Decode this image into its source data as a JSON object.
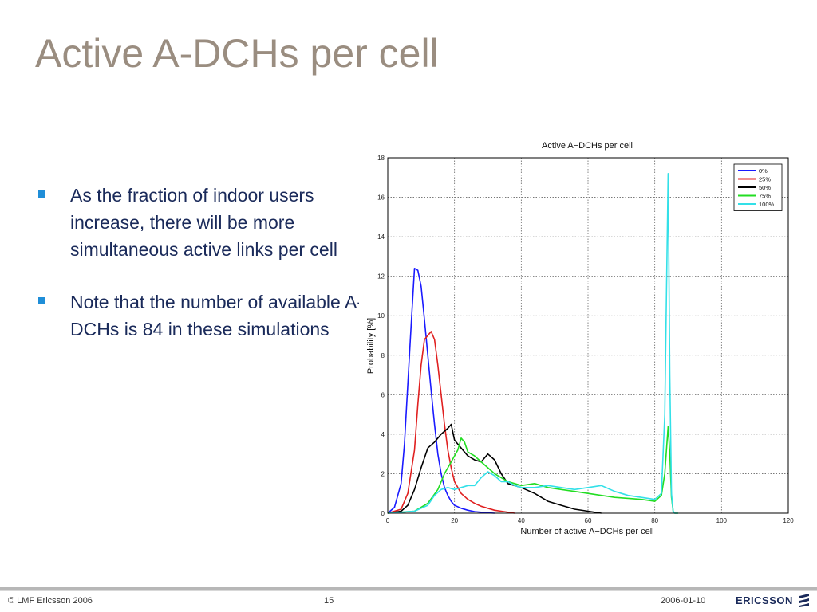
{
  "slide": {
    "title": "Active A-DCHs per cell",
    "bullets": [
      "As the fraction of indoor users increase, there will be more simultaneous active links per cell",
      "Note that the number of available A-DCHs is 84 in these simulations"
    ]
  },
  "footer": {
    "copyright": "© LMF Ericsson 2006",
    "page_number": "15",
    "date": "2006-01-10",
    "logo_text": "ERICSSON"
  },
  "chart_data": {
    "type": "line",
    "title": "Active A−DCHs per cell",
    "xlabel": "Number of active A−DCHs per cell",
    "ylabel": "Probability [%]",
    "xlim": [
      0,
      120
    ],
    "ylim": [
      0,
      18
    ],
    "xticks": [
      0,
      20,
      40,
      60,
      80,
      100,
      120
    ],
    "yticks": [
      0,
      2,
      4,
      6,
      8,
      10,
      12,
      14,
      16,
      18
    ],
    "grid": true,
    "legend_position": "top-right",
    "series": [
      {
        "name": "0%",
        "color": "#1a1aff",
        "x": [
          0,
          2,
          4,
          5,
          6,
          7,
          8,
          9,
          10,
          11,
          12,
          13,
          14,
          15,
          16,
          17,
          18,
          19,
          20,
          22,
          24,
          26,
          28,
          30,
          32
        ],
        "y": [
          0,
          0.3,
          1.5,
          3.5,
          6.5,
          9.5,
          12.4,
          12.3,
          11.5,
          9.8,
          8.0,
          6.2,
          4.5,
          3.0,
          2.0,
          1.3,
          0.9,
          0.6,
          0.4,
          0.25,
          0.15,
          0.08,
          0.05,
          0.02,
          0
        ]
      },
      {
        "name": "25%",
        "color": "#e02020",
        "x": [
          0,
          4,
          6,
          8,
          9,
          10,
          11,
          12,
          13,
          14,
          15,
          16,
          17,
          18,
          19,
          20,
          22,
          24,
          26,
          28,
          30,
          32,
          34,
          36,
          38
        ],
        "y": [
          0,
          0.2,
          1.0,
          3.2,
          5.5,
          7.5,
          8.8,
          9.0,
          9.2,
          8.8,
          7.5,
          6.0,
          4.5,
          3.2,
          2.3,
          1.6,
          1.0,
          0.7,
          0.5,
          0.35,
          0.25,
          0.15,
          0.1,
          0.05,
          0
        ]
      },
      {
        "name": "50%",
        "color": "#000000",
        "x": [
          0,
          4,
          6,
          8,
          10,
          12,
          14,
          16,
          18,
          19,
          20,
          21,
          22,
          24,
          26,
          28,
          30,
          32,
          34,
          36,
          38,
          40,
          44,
          48,
          52,
          56,
          60,
          64
        ],
        "y": [
          0,
          0.1,
          0.4,
          1.2,
          2.3,
          3.3,
          3.6,
          4.0,
          4.3,
          4.5,
          3.7,
          3.5,
          3.3,
          2.9,
          2.7,
          2.6,
          3.0,
          2.7,
          2.0,
          1.5,
          1.4,
          1.3,
          1.0,
          0.6,
          0.4,
          0.2,
          0.1,
          0
        ]
      },
      {
        "name": "75%",
        "color": "#22dd22",
        "x": [
          0,
          8,
          12,
          15,
          17,
          19,
          21,
          22,
          23,
          24,
          26,
          28,
          30,
          32,
          34,
          36,
          38,
          40,
          44,
          48,
          52,
          56,
          60,
          64,
          68,
          72,
          76,
          80,
          82,
          83,
          84,
          84.5,
          85,
          85.5,
          86,
          87
        ],
        "y": [
          0,
          0.1,
          0.5,
          1.2,
          2.0,
          2.6,
          3.2,
          3.8,
          3.6,
          3.1,
          2.9,
          2.6,
          2.3,
          2.0,
          1.8,
          1.6,
          1.5,
          1.4,
          1.5,
          1.3,
          1.2,
          1.1,
          1.0,
          0.9,
          0.8,
          0.75,
          0.7,
          0.6,
          0.9,
          2.0,
          4.4,
          3.0,
          0.8,
          0.1,
          0,
          0
        ]
      },
      {
        "name": "100%",
        "color": "#33e0e8",
        "x": [
          0,
          8,
          12,
          14,
          16,
          18,
          20,
          22,
          24,
          26,
          28,
          30,
          32,
          34,
          36,
          38,
          40,
          44,
          48,
          52,
          56,
          60,
          64,
          68,
          72,
          76,
          80,
          82,
          83,
          84,
          84.5,
          85,
          85.5,
          86,
          87
        ],
        "y": [
          0,
          0.1,
          0.4,
          0.9,
          1.2,
          1.3,
          1.2,
          1.3,
          1.4,
          1.4,
          1.8,
          2.1,
          1.9,
          1.6,
          1.6,
          1.4,
          1.3,
          1.3,
          1.4,
          1.3,
          1.2,
          1.3,
          1.4,
          1.1,
          0.9,
          0.8,
          0.7,
          1.0,
          5.0,
          17.2,
          7.0,
          1.0,
          0.1,
          0,
          0
        ]
      }
    ]
  }
}
